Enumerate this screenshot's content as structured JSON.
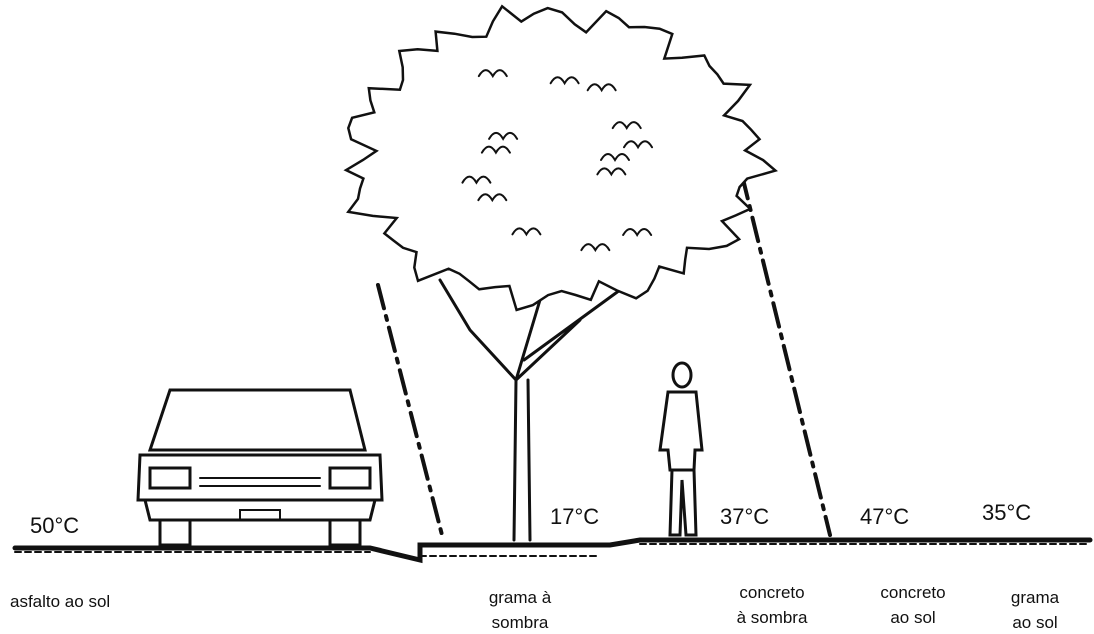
{
  "zones": [
    {
      "temperature": "50°C",
      "surface": [
        "asfalto ao sol"
      ]
    },
    {
      "temperature": "17°C",
      "surface": [
        "grama à",
        "sombra"
      ]
    },
    {
      "temperature": "37°C",
      "surface": [
        "concreto",
        "à sombra"
      ]
    },
    {
      "temperature": "47°C",
      "surface": [
        "concreto",
        "ao sol"
      ]
    },
    {
      "temperature": "35°C",
      "surface": [
        "grama",
        "ao sol"
      ]
    }
  ]
}
